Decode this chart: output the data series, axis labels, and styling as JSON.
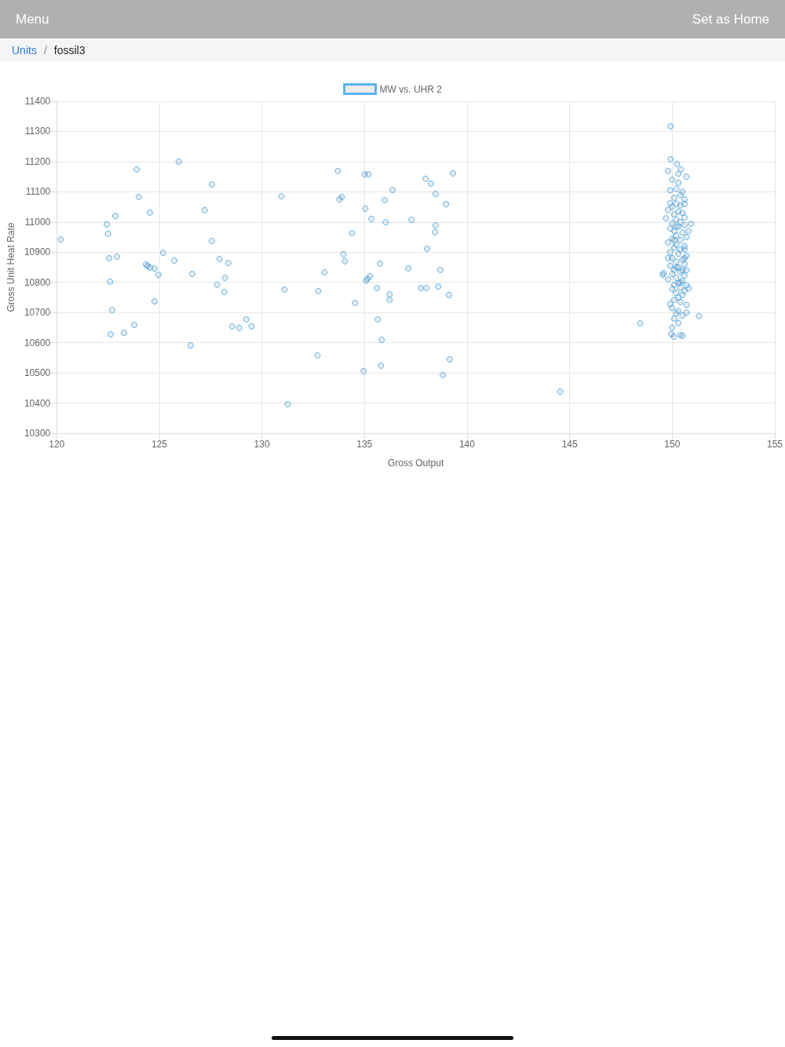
{
  "chart_data": {
    "type": "scatter",
    "xlabel": "Gross Output",
    "ylabel": "Gross Unit Heat Rate",
    "annotations": [
      "Menu",
      "Set as Home",
      "Units",
      "/",
      "fossil3"
    ],
    "xlim": [
      120,
      155
    ],
    "xticks": [
      120,
      125,
      130,
      135,
      140,
      145,
      150,
      155
    ],
    "ylim": [
      10300,
      11400
    ],
    "yticks": [
      10300,
      10400,
      10500,
      10600,
      10700,
      10800,
      10900,
      11000,
      11100,
      11200,
      11300,
      11400
    ],
    "grid": true,
    "legend": "top",
    "marker": "circle",
    "series": [
      {
        "name": "MW vs. UHR 2",
        "color": "#36a2eb",
        "x": [
          120.2,
          122.44,
          122.5,
          122.86,
          122.56,
          122.94,
          122.6,
          122.7,
          122.63,
          123.28,
          123.78,
          123.9,
          124.0,
          124.54,
          124.35,
          124.43,
          124.54,
          124.77,
          124.96,
          124.77,
          125.19,
          125.73,
          125.95,
          126.53,
          126.6,
          127.21,
          127.56,
          127.56,
          127.82,
          127.94,
          128.36,
          128.2,
          128.17,
          128.55,
          128.89,
          129.24,
          129.5,
          130.95,
          131.1,
          131.26,
          132.71,
          132.75,
          133.05,
          133.7,
          133.78,
          133.89,
          134.39,
          133.97,
          134.05,
          134.54,
          134.96,
          135.0,
          135.19,
          135.04,
          135.34,
          135.08,
          135.15,
          135.27,
          135.61,
          135.76,
          135.65,
          135.84,
          135.8,
          135.99,
          136.37,
          136.03,
          136.22,
          136.22,
          137.14,
          137.29,
          137.75,
          138.02,
          137.98,
          138.24,
          138.05,
          138.47,
          138.47,
          138.44,
          138.59,
          138.7,
          138.97,
          138.82,
          139.16,
          139.12,
          139.31,
          144.54,
          148.44,
          151.3,
          150.92,
          149.92,
          149.92,
          150.23,
          149.8,
          150.42,
          150.69,
          149.58,
          149.54,
          149.96,
          150.08,
          150.5,
          150.0,
          150.3,
          150.2,
          149.9,
          150.4,
          150.1,
          150.6,
          149.9,
          150.2,
          150.4,
          150.0,
          149.8,
          150.3,
          150.5,
          150.1,
          150.6,
          149.7,
          150.2,
          150.4,
          150.0,
          150.6,
          150.3,
          149.9,
          150.1,
          150.5,
          150.2,
          150.7,
          150.0,
          150.4,
          149.8,
          150.2,
          150.6,
          150.1,
          150.4,
          149.9,
          150.3,
          150.7,
          150.0,
          150.5,
          150.2,
          150.6,
          149.9,
          150.3,
          150.1,
          150.7,
          150.4,
          150.0,
          150.6,
          150.2,
          149.8,
          150.5,
          150.3,
          150.1,
          150.7,
          150.4,
          150.0,
          150.6,
          150.2,
          150.5,
          150.3,
          150.1,
          150.4,
          150.7,
          149.9,
          150.0,
          150.3,
          150.2,
          150.5,
          150.1,
          150.3,
          150.0,
          150.7,
          150.8,
          150.8,
          150.4,
          150.6,
          150.5,
          150.3,
          150.6,
          150.2,
          149.8,
          150.5,
          150.4,
          150.2,
          150.6,
          150.1
        ],
        "values": [
          10942,
          10992,
          10961,
          11020,
          10880,
          10885,
          10802,
          10708,
          10628,
          10633,
          10659,
          11174,
          11083,
          11031,
          10859,
          10854,
          10849,
          10846,
          10825,
          10737,
          10898,
          10872,
          11200,
          10591,
          10828,
          11039,
          11124,
          10937,
          10792,
          10877,
          10864,
          10815,
          10768,
          10654,
          10649,
          10677,
          10654,
          11085,
          10776,
          10396,
          10558,
          10771,
          10833,
          11169,
          11075,
          11083,
          10963,
          10893,
          10870,
          10732,
          10506,
          11158,
          11158,
          11044,
          11010,
          10805,
          10812,
          10820,
          10781,
          10862,
          10677,
          10610,
          10524,
          11072,
          11106,
          10999,
          10760,
          10742,
          10846,
          11007,
          10781,
          10781,
          11143,
          11127,
          10911,
          11093,
          10989,
          10966,
          10786,
          10841,
          11059,
          10493,
          10545,
          10758,
          11161,
          10438,
          10664,
          10688,
          10994,
          11317,
          11208,
          11192,
          11169,
          11174,
          11150,
          10831,
          10825,
          10628,
          10620,
          10623,
          11140,
          11130,
          11110,
          11105,
          11090,
          11080,
          11075,
          11062,
          11060,
          11055,
          11050,
          11040,
          11035,
          11030,
          11025,
          11015,
          11012,
          11008,
          11000,
          10995,
          10990,
          10985,
          10978,
          10970,
          10965,
          10955,
          10950,
          10945,
          10940,
          10932,
          10925,
          10920,
          10915,
          10908,
          10900,
          10895,
          10888,
          10880,
          10875,
          10868,
          10860,
          10855,
          10850,
          10842,
          10840,
          10835,
          10828,
          10822,
          10815,
          10810,
          10805,
          10798,
          10792,
          10790,
          10782,
          10778,
          10772,
          10765,
          10758,
          10750,
          10742,
          10735,
          10725,
          10728,
          10715,
          10705,
          10698,
          10690,
          10680,
          10665,
          10650,
          10700,
          10780,
          10970,
          10625,
          10910,
          11100,
          11160,
          11060,
          10985,
          10880,
          10840,
          10800,
          10850,
          10880,
          10940
        ]
      }
    ]
  }
}
